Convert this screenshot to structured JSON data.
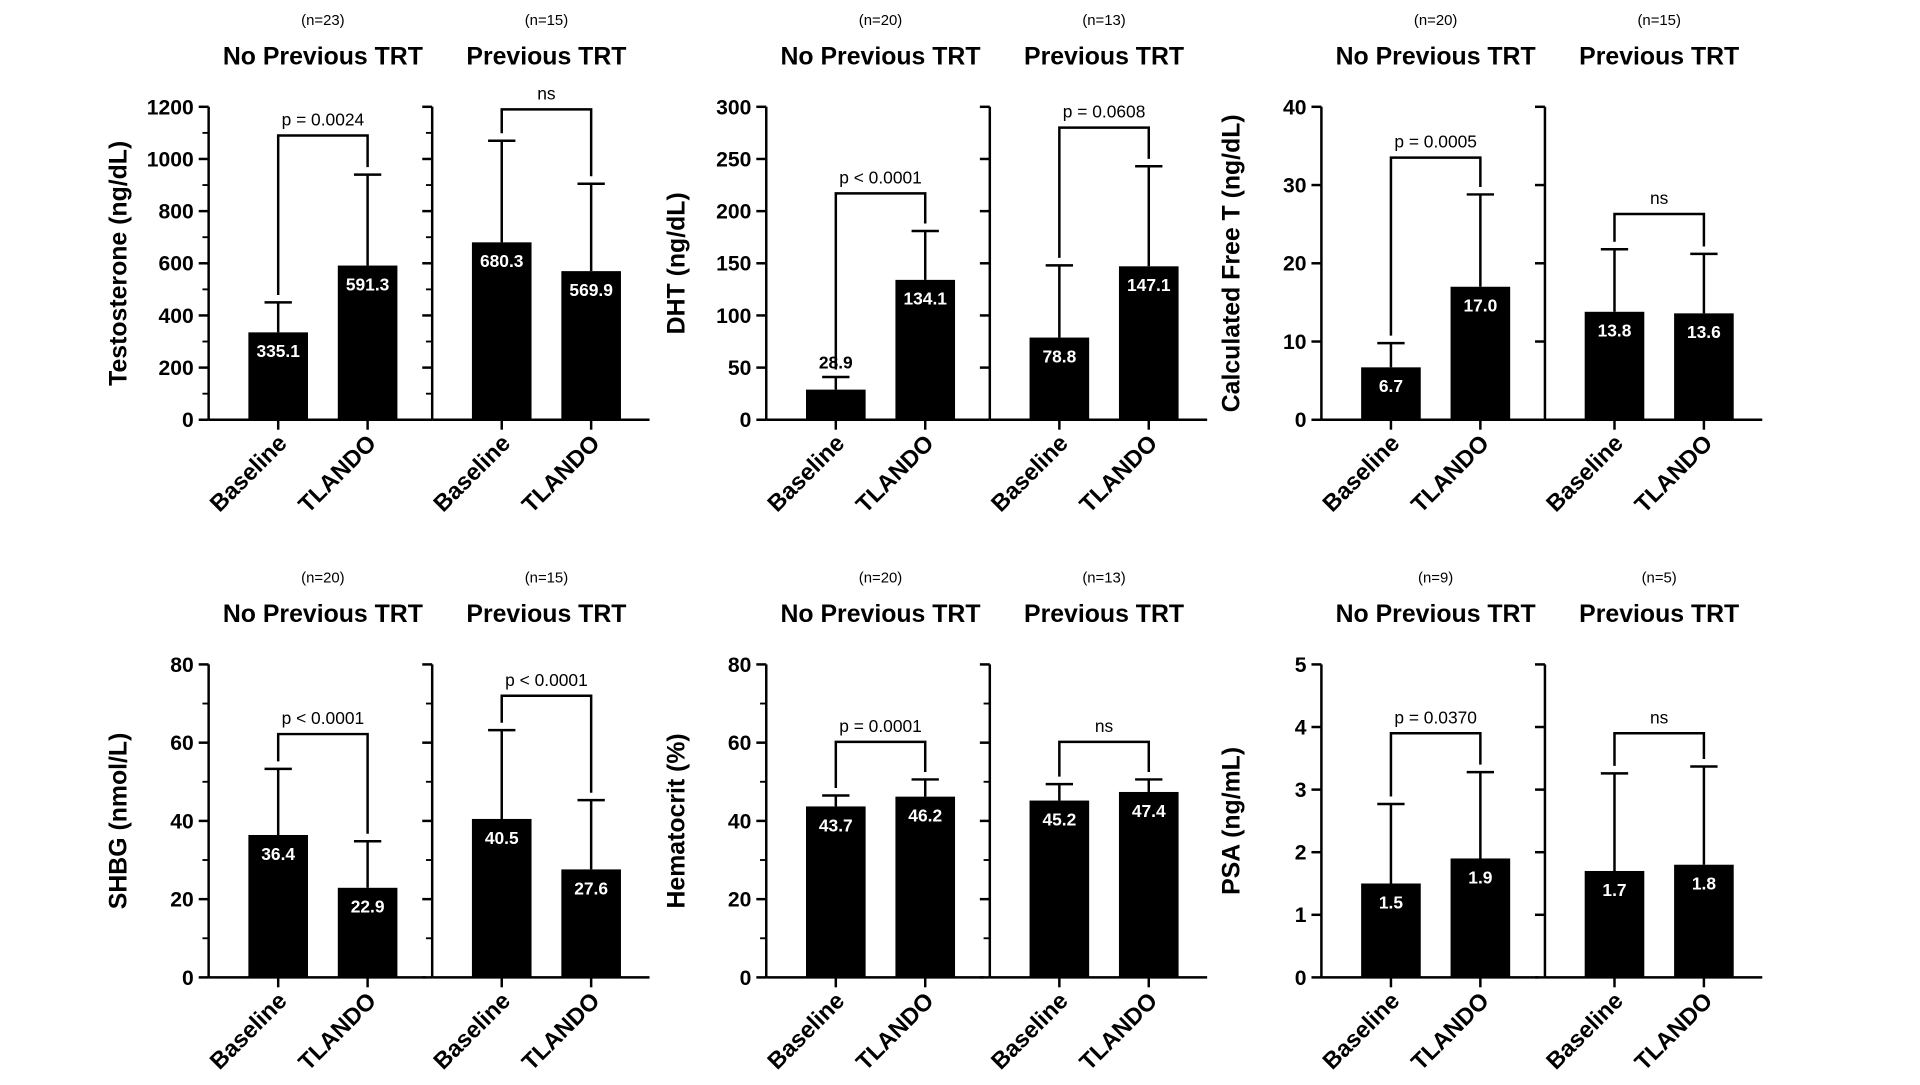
{
  "chart_data": [
    {
      "type": "bar",
      "ylabel": "Testosterone (ng/dL)",
      "ylim": [
        0,
        1200
      ],
      "yticks": [
        0,
        200,
        400,
        600,
        800,
        1000,
        1200
      ],
      "minor_ticks": true,
      "categories": [
        "Baseline",
        "TLANDO"
      ],
      "groups": [
        {
          "n": "(n=23)",
          "title": "No Previous TRT",
          "values": [
            335.1,
            591.3
          ],
          "labels": [
            "335.1",
            "591.3"
          ],
          "err": [
            450,
            940
          ],
          "comparison": {
            "label": "p = 0.0024",
            "y": 1090
          }
        },
        {
          "n": "(n=15)",
          "title": "Previous TRT",
          "values": [
            680.3,
            569.9
          ],
          "labels": [
            "680.3",
            "569.9"
          ],
          "err": [
            1070,
            905
          ],
          "comparison": {
            "label": "ns",
            "y": 1190
          }
        }
      ]
    },
    {
      "type": "bar",
      "ylabel": "DHT (ng/dL)",
      "ylim": [
        0,
        300
      ],
      "yticks": [
        0,
        50,
        100,
        150,
        200,
        250,
        300
      ],
      "minor_ticks": false,
      "categories": [
        "Baseline",
        "TLANDO"
      ],
      "groups": [
        {
          "n": "(n=20)",
          "title": "No Previous TRT",
          "values": [
            28.9,
            134.1
          ],
          "labels": [
            "28.9",
            "134.1"
          ],
          "err": [
            41,
            181
          ],
          "comparison": {
            "label": "p < 0.0001",
            "y": 217
          }
        },
        {
          "n": "(n=13)",
          "title": "Previous TRT",
          "values": [
            78.8,
            147.1
          ],
          "labels": [
            "78.8",
            "147.1"
          ],
          "err": [
            148,
            243
          ],
          "comparison": {
            "label": "p = 0.0608",
            "y": 280
          }
        }
      ]
    },
    {
      "type": "bar",
      "ylabel": "Calculated Free T (ng/dL)",
      "ylim": [
        0,
        40
      ],
      "yticks": [
        0,
        10,
        20,
        30,
        40
      ],
      "minor_ticks": false,
      "categories": [
        "Baseline",
        "TLANDO"
      ],
      "groups": [
        {
          "n": "(n=20)",
          "title": "No Previous TRT",
          "values": [
            6.7,
            17.0
          ],
          "labels": [
            "6.7",
            "17.0"
          ],
          "err": [
            9.8,
            28.8
          ],
          "comparison": {
            "label": "p = 0.0005",
            "y": 33.5
          }
        },
        {
          "n": "(n=15)",
          "title": "Previous TRT",
          "values": [
            13.8,
            13.6
          ],
          "labels": [
            "13.8",
            "13.6"
          ],
          "err": [
            21.8,
            21.2
          ],
          "comparison": {
            "label": "ns",
            "y": 26.3
          }
        }
      ]
    },
    {
      "type": "bar",
      "ylabel": "SHBG (nmol/L)",
      "ylim": [
        0,
        80
      ],
      "yticks": [
        0,
        20,
        40,
        60,
        80
      ],
      "minor_ticks": true,
      "categories": [
        "Baseline",
        "TLANDO"
      ],
      "groups": [
        {
          "n": "(n=20)",
          "title": "No Previous TRT",
          "values": [
            36.4,
            22.9
          ],
          "labels": [
            "36.4",
            "22.9"
          ],
          "err": [
            53.3,
            34.8
          ],
          "comparison": {
            "label": "p < 0.0001",
            "y": 62.2
          }
        },
        {
          "n": "(n=15)",
          "title": "Previous TRT",
          "values": [
            40.5,
            27.6
          ],
          "labels": [
            "40.5",
            "27.6"
          ],
          "err": [
            63.2,
            45.3
          ],
          "comparison": {
            "label": "p < 0.0001",
            "y": 72
          }
        }
      ]
    },
    {
      "type": "bar",
      "ylabel": "Hematocrit (%)",
      "ylim": [
        0,
        80
      ],
      "yticks": [
        0,
        20,
        40,
        60,
        80
      ],
      "minor_ticks": true,
      "categories": [
        "Baseline",
        "TLANDO"
      ],
      "groups": [
        {
          "n": "(n=20)",
          "title": "No Previous TRT",
          "values": [
            43.7,
            46.2
          ],
          "labels": [
            "43.7",
            "46.2"
          ],
          "err": [
            46.5,
            50.6
          ],
          "comparison": {
            "label": "p = 0.0001",
            "y": 60.2
          }
        },
        {
          "n": "(n=13)",
          "title": "Previous TRT",
          "values": [
            45.2,
            47.4
          ],
          "labels": [
            "45.2",
            "47.4"
          ],
          "err": [
            49.4,
            50.6
          ],
          "comparison": {
            "label": "ns",
            "y": 60.2
          }
        }
      ]
    },
    {
      "type": "bar",
      "ylabel": "PSA (ng/mL)",
      "ylim": [
        0,
        5
      ],
      "yticks": [
        0,
        1,
        2,
        3,
        4,
        5
      ],
      "minor_ticks": false,
      "categories": [
        "Baseline",
        "TLANDO"
      ],
      "groups": [
        {
          "n": "(n=9)",
          "title": "No Previous TRT",
          "values": [
            1.5,
            1.9
          ],
          "labels": [
            "1.5",
            "1.9"
          ],
          "err": [
            2.77,
            3.28
          ],
          "comparison": {
            "label": "p = 0.0370",
            "y": 3.9
          }
        },
        {
          "n": "(n=5)",
          "title": "Previous TRT",
          "values": [
            1.7,
            1.8
          ],
          "labels": [
            "1.7",
            "1.8"
          ],
          "err": [
            3.26,
            3.37
          ],
          "comparison": {
            "label": "ns",
            "y": 3.9
          }
        }
      ]
    }
  ]
}
